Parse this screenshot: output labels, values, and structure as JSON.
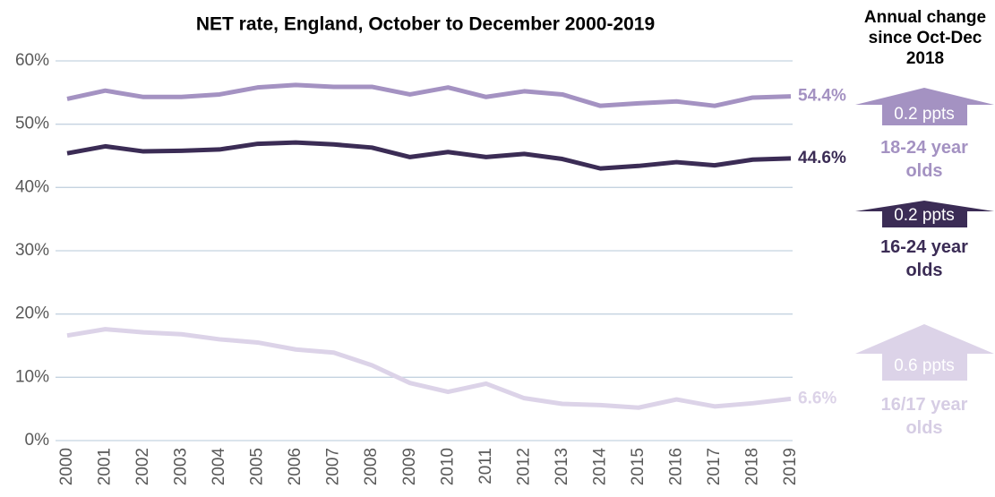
{
  "chart_data": {
    "type": "line",
    "title": "NET rate, England, October to December 2000-2019",
    "annotation": "Annual change since Oct-Dec 2018",
    "categories": [
      "2000",
      "2001",
      "2002",
      "2003",
      "2004",
      "2005",
      "2006",
      "2007",
      "2008",
      "2009",
      "2010",
      "2011",
      "2012",
      "2013",
      "2014",
      "2015",
      "2016",
      "2017",
      "2018",
      "2019"
    ],
    "ylim": [
      0,
      60
    ],
    "yticks": [
      {
        "value": 0,
        "label": "0%"
      },
      {
        "value": 10,
        "label": "10%"
      },
      {
        "value": 20,
        "label": "20%"
      },
      {
        "value": 30,
        "label": "30%"
      },
      {
        "value": 40,
        "label": "40%"
      },
      {
        "value": 50,
        "label": "50%"
      },
      {
        "value": 60,
        "label": "60%"
      }
    ],
    "grid": true,
    "series": [
      {
        "name": "18-24 year olds",
        "color": "#a492c2",
        "values": [
          54.0,
          55.3,
          54.3,
          54.3,
          54.7,
          55.8,
          56.2,
          55.9,
          55.9,
          54.7,
          55.8,
          54.3,
          55.2,
          54.7,
          52.9,
          53.3,
          53.6,
          52.9,
          54.2,
          54.4
        ],
        "value_labels": [
          null,
          null,
          null,
          null,
          null,
          null,
          null,
          null,
          null,
          null,
          null,
          null,
          null,
          null,
          null,
          null,
          null,
          null,
          null,
          "54.4%"
        ],
        "change": 0.2,
        "change_label": "0.2 ppts"
      },
      {
        "name": "16-24 year olds",
        "color": "#3b2c55",
        "values": [
          45.4,
          46.5,
          45.7,
          45.8,
          46.0,
          46.9,
          47.1,
          46.8,
          46.3,
          44.8,
          45.6,
          44.8,
          45.3,
          44.5,
          43.0,
          43.4,
          44.0,
          43.5,
          44.4,
          44.6
        ],
        "value_labels": [
          null,
          null,
          null,
          null,
          null,
          null,
          null,
          null,
          null,
          null,
          null,
          null,
          null,
          null,
          null,
          null,
          null,
          null,
          null,
          "44.6%"
        ],
        "change": 0.2,
        "change_label": "0.2 ppts"
      },
      {
        "name": "16/17 year olds",
        "color": "#dcd3e8",
        "values": [
          16.6,
          17.6,
          17.1,
          16.8,
          16.0,
          15.5,
          14.4,
          13.9,
          11.9,
          9.1,
          7.7,
          9.0,
          6.7,
          5.8,
          5.6,
          5.2,
          6.5,
          5.4,
          5.9,
          6.6
        ],
        "value_labels": [
          null,
          null,
          null,
          null,
          null,
          null,
          null,
          null,
          null,
          null,
          null,
          null,
          null,
          null,
          null,
          null,
          null,
          null,
          null,
          "6.6%"
        ],
        "change": 0.6,
        "change_label": "0.6 ppts"
      }
    ]
  }
}
